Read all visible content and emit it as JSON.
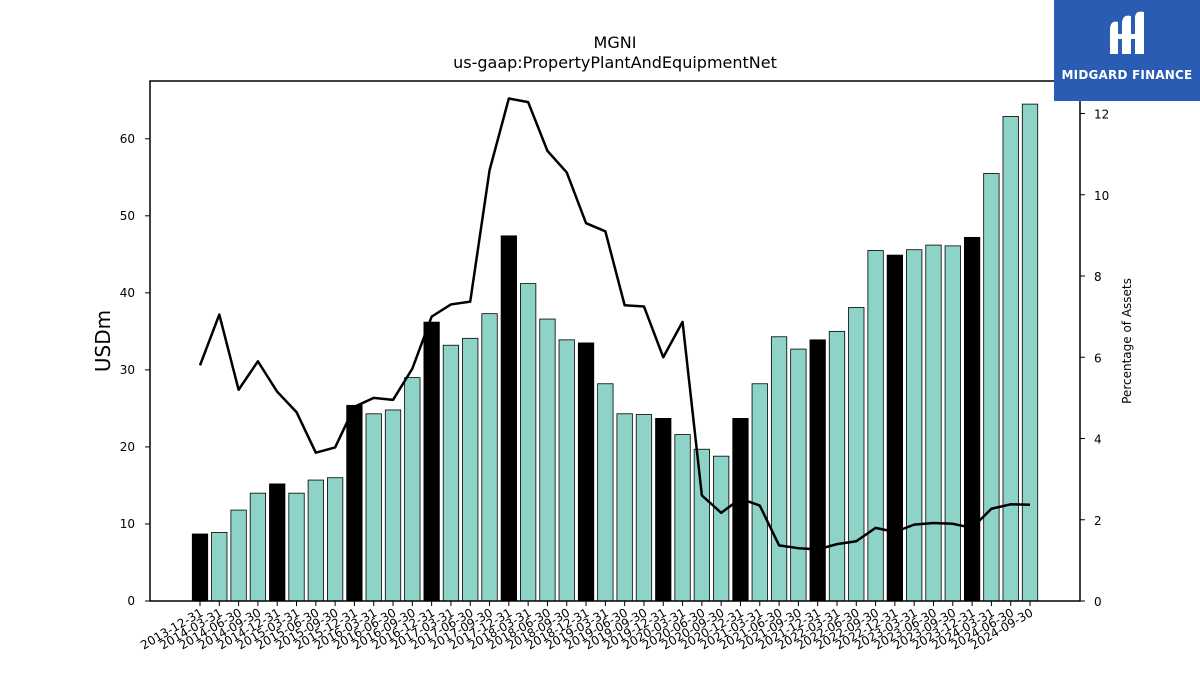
{
  "chart_data": {
    "type": "bar",
    "title": "MGNI",
    "subtitle": "us-gaap:PropertyPlantAndEquipmentNet",
    "ylabel": "USDm",
    "y2label": "Percentage of Assets",
    "ylim": [
      0,
      67.5
    ],
    "y2lim": [
      0,
      12.8
    ],
    "yticks": [
      0,
      10,
      20,
      30,
      40,
      50,
      60
    ],
    "y2ticks": [
      0,
      2,
      4,
      6,
      8,
      10,
      12
    ],
    "bar_colors": {
      "default": "#8dd3c7",
      "year_end": "#000000"
    },
    "line_color": "#000000",
    "categories": [
      "2013-12-31",
      "2014-03-31",
      "2014-06-30",
      "2014-09-30",
      "2014-12-31",
      "2015-03-31",
      "2015-06-30",
      "2015-09-30",
      "2015-12-31",
      "2016-03-31",
      "2016-06-30",
      "2016-09-30",
      "2016-12-31",
      "2017-03-31",
      "2017-06-30",
      "2017-09-30",
      "2017-12-31",
      "2018-03-31",
      "2018-06-30",
      "2018-09-30",
      "2018-12-31",
      "2019-03-31",
      "2019-06-30",
      "2019-09-30",
      "2019-12-31",
      "2020-03-31",
      "2020-06-30",
      "2020-09-30",
      "2020-12-31",
      "2021-03-31",
      "2021-06-30",
      "2021-09-30",
      "2021-12-31",
      "2022-03-31",
      "2022-06-30",
      "2022-09-30",
      "2022-12-31",
      "2023-03-31",
      "2023-06-30",
      "2023-09-30",
      "2023-12-31",
      "2024-03-31",
      "2024-06-30",
      "2024-09-30"
    ],
    "series": [
      {
        "kind": "bar",
        "values": [
          8.7,
          8.9,
          11.8,
          14.0,
          15.2,
          14.0,
          15.7,
          16.0,
          25.4,
          24.3,
          24.8,
          29.0,
          36.2,
          33.2,
          34.1,
          37.3,
          47.4,
          41.2,
          36.6,
          33.9,
          33.5,
          28.2,
          24.3,
          24.2,
          23.7,
          21.6,
          19.7,
          18.8,
          23.7,
          28.2,
          34.3,
          32.7,
          33.9,
          35.0,
          38.1,
          45.5,
          44.9,
          45.6,
          46.2,
          46.1,
          47.2,
          55.5,
          62.9,
          64.5
        ]
      },
      {
        "kind": "line",
        "axis": "right",
        "values": [
          5.8,
          7.05,
          5.2,
          5.9,
          5.15,
          4.65,
          3.65,
          3.78,
          4.78,
          5.0,
          4.95,
          5.72,
          7.0,
          7.3,
          7.37,
          10.6,
          12.37,
          12.28,
          11.08,
          10.55,
          9.3,
          9.1,
          7.28,
          7.25,
          6.0,
          6.87,
          2.6,
          2.17,
          2.52,
          2.35,
          1.37,
          1.3,
          1.27,
          1.4,
          1.47,
          1.8,
          1.7,
          1.88,
          1.92,
          1.9,
          1.8,
          2.27,
          2.38,
          2.37
        ]
      }
    ]
  },
  "logo": {
    "text": "MIDGARD FINANCE"
  }
}
